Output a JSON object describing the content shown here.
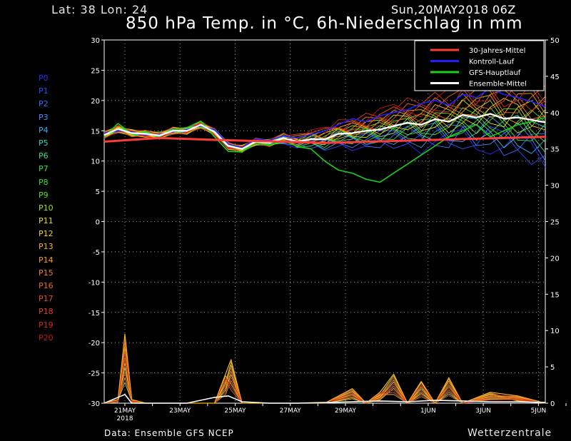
{
  "header": {
    "location": "Lat: 38 Lon: 24",
    "run": "Sun,20MAY2018 06Z",
    "title": "850 hPa Temp. in °C, 6h-Niederschlag in mm"
  },
  "footer": {
    "source": "Data: Ensemble GFS NCEP",
    "brand": "Wetterzentrale"
  },
  "members": [
    {
      "label": "P0",
      "color": "#2a2aff"
    },
    {
      "label": "P1",
      "color": "#2e4dff"
    },
    {
      "label": "P2",
      "color": "#3a6dff"
    },
    {
      "label": "P3",
      "color": "#3a8dff"
    },
    {
      "label": "P4",
      "color": "#39aaf0"
    },
    {
      "label": "P5",
      "color": "#3bd6c8"
    },
    {
      "label": "P6",
      "color": "#3ee08a"
    },
    {
      "label": "P7",
      "color": "#33e04b"
    },
    {
      "label": "P8",
      "color": "#3dde2a"
    },
    {
      "label": "P9",
      "color": "#5fe01e"
    },
    {
      "label": "P10",
      "color": "#a6e01a"
    },
    {
      "label": "P11",
      "color": "#e0e01a"
    },
    {
      "label": "P12",
      "color": "#f2d21c"
    },
    {
      "label": "P13",
      "color": "#f5b51e"
    },
    {
      "label": "P14",
      "color": "#f59a20"
    },
    {
      "label": "P15",
      "color": "#f58020"
    },
    {
      "label": "P16",
      "color": "#f06a1e"
    },
    {
      "label": "P17",
      "color": "#e8521c"
    },
    {
      "label": "P18",
      "color": "#e0401a"
    },
    {
      "label": "P19",
      "color": "#d42a18"
    },
    {
      "label": "P20",
      "color": "#c81414"
    }
  ],
  "chart_data": {
    "type": "line",
    "title": "850 hPa Temp. in °C, 6h-Niederschlag in mm",
    "ylim": [
      -30,
      30
    ],
    "y_ticks": [
      30,
      25,
      20,
      15,
      10,
      5,
      0,
      -5,
      -10,
      -15,
      -20,
      -25,
      -30
    ],
    "y2lim": [
      0,
      50
    ],
    "y2_ticks": [
      50,
      45,
      40,
      35,
      30,
      25,
      20,
      15,
      10,
      5,
      0
    ],
    "x_range_days": [
      0,
      16
    ],
    "x_ticks": [
      {
        "label": "21MAY",
        "sub": "2018",
        "day": 0.75
      },
      {
        "label": "23MAY",
        "day": 2.75
      },
      {
        "label": "25MAY",
        "day": 4.75
      },
      {
        "label": "27MAY",
        "day": 6.75
      },
      {
        "label": "29MAY",
        "day": 8.75
      },
      {
        "label": "1JUN",
        "day": 11.75
      },
      {
        "label": "3JUN",
        "day": 13.75
      },
      {
        "label": "5JUN",
        "day": 15.75
      }
    ],
    "grid": true,
    "legend_position": "top-right",
    "legend": [
      {
        "name": "30-Jahres-Mittel",
        "color": "#ff3a3a"
      },
      {
        "name": "Kontroll-Lauf",
        "color": "#1e1eff"
      },
      {
        "name": "GFS-Hauptlauf",
        "color": "#19d219"
      },
      {
        "name": "Ensemble-Mittel",
        "color": "#ffffff"
      }
    ],
    "climate_mean": {
      "name": "30-Jahres-Mittel",
      "x": [
        0,
        2,
        4,
        8,
        12,
        16
      ],
      "y": [
        13.2,
        13.8,
        13.5,
        13.0,
        13.5,
        14.0
      ],
      "color": "#ff3a3a"
    },
    "ensemble_mean": {
      "name": "Ensemble-Mittel",
      "color": "#ffffff",
      "x": [
        0,
        0.5,
        1,
        1.5,
        2,
        2.5,
        3,
        3.5,
        4,
        4.5,
        5,
        5.5,
        6,
        6.5,
        7,
        7.5,
        8,
        8.5,
        9,
        9.5,
        10,
        10.5,
        11,
        11.5,
        12,
        12.5,
        13,
        13.5,
        14,
        14.5,
        15,
        15.5,
        16
      ],
      "y": [
        14.3,
        15.3,
        14.6,
        14.5,
        14.2,
        15.0,
        15.0,
        16.0,
        14.8,
        12.5,
        12.0,
        13.2,
        13.0,
        13.8,
        13.2,
        13.6,
        13.6,
        14.5,
        14.6,
        15.0,
        15.2,
        15.8,
        16.3,
        16.0,
        16.9,
        16.5,
        17.6,
        17.2,
        17.8,
        17.0,
        17.2,
        16.8,
        16.4
      ]
    },
    "main_run": {
      "name": "GFS-Hauptlauf",
      "color": "#19d219",
      "x": [
        0,
        0.5,
        1,
        1.5,
        2,
        2.5,
        3,
        3.5,
        4,
        4.5,
        5,
        5.5,
        6,
        6.5,
        7,
        7.5,
        8,
        8.5,
        9,
        9.5,
        10,
        10.5,
        11,
        11.5,
        12,
        12.5,
        13,
        13.5,
        14,
        14.5,
        15,
        15.5,
        16
      ],
      "y": [
        14.0,
        16.2,
        14.5,
        14.8,
        14.0,
        15.2,
        15.5,
        16.6,
        14.0,
        11.6,
        11.5,
        13.0,
        12.6,
        13.4,
        12.4,
        12.0,
        10.0,
        8.5,
        8.0,
        7.0,
        6.5,
        8.0,
        9.5,
        11.0,
        12.5,
        14.0,
        15.0,
        16.0,
        14.0,
        15.0,
        16.0,
        16.5,
        17.2
      ]
    },
    "control_run": {
      "name": "Kontroll-Lauf",
      "color": "#1e1eff",
      "x": [
        0,
        0.5,
        1,
        1.5,
        2,
        2.5,
        3,
        3.5,
        4,
        4.5,
        5,
        5.5,
        6,
        6.5,
        7,
        7.5,
        8,
        8.5,
        9,
        9.5,
        10,
        10.5,
        11,
        11.5,
        12,
        12.5,
        13,
        13.5,
        14,
        14.5,
        15,
        15.5,
        16
      ],
      "y": [
        14.6,
        15.0,
        14.8,
        14.3,
        14.4,
        14.8,
        15.2,
        15.8,
        15.2,
        12.8,
        12.2,
        13.6,
        13.4,
        14.2,
        13.8,
        14.4,
        15.0,
        16.0,
        17.0,
        16.5,
        17.5,
        18.0,
        18.5,
        19.5,
        20.0,
        19.2,
        21.0,
        20.5,
        22.0,
        21.0,
        20.5,
        19.8,
        19.0
      ]
    },
    "precip_mean": {
      "name": "Ensemble-Mittel",
      "unit": "mm",
      "color": "#ffffff",
      "x": [
        0,
        0.75,
        1,
        2,
        3,
        4,
        4.5,
        5,
        6,
        7,
        8,
        9,
        10,
        11,
        12,
        13,
        14,
        15,
        16
      ],
      "y": [
        0,
        1.2,
        0,
        0,
        0,
        0.8,
        1.0,
        0.2,
        0,
        0,
        0.1,
        0.2,
        0.3,
        0.2,
        0.4,
        0.3,
        0.2,
        0.2,
        0.1
      ]
    },
    "precip_max": {
      "name": "P14",
      "unit": "mm",
      "color": "#f5b51e",
      "x": [
        0,
        0.5,
        0.75,
        1,
        1.5,
        4,
        4.4,
        4.6,
        5,
        7,
        8,
        9,
        9.5,
        10,
        10.5,
        11,
        11.5,
        12,
        12.5,
        13,
        14,
        15,
        16
      ],
      "y": [
        0,
        0.5,
        9.5,
        0.5,
        0,
        0,
        4.0,
        6.0,
        0,
        0,
        0,
        2.0,
        0,
        1.5,
        4.0,
        0,
        3.0,
        0,
        3.5,
        0,
        1.5,
        1.0,
        0
      ]
    }
  }
}
